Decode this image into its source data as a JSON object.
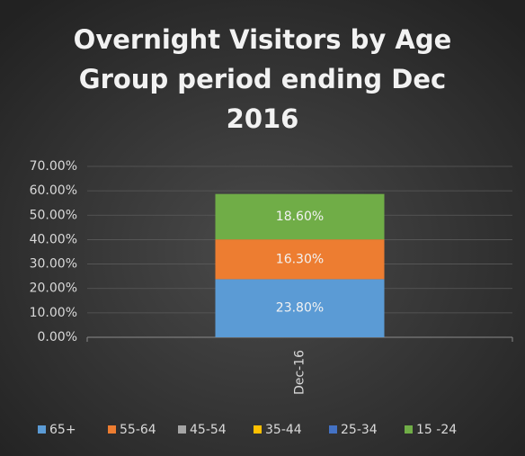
{
  "chart_data": {
    "type": "stacked_bar",
    "title": "Overnight Visitors by Age Group period ending Dec 2016",
    "categories": [
      "Dec-16"
    ],
    "series": [
      {
        "name": "65+",
        "color": "#5b9bd5",
        "values": [
          23.8
        ],
        "value_labels": [
          "23.80%"
        ]
      },
      {
        "name": "55-64",
        "color": "#ed7d31",
        "values": [
          16.3
        ],
        "value_labels": [
          "16.30%"
        ]
      },
      {
        "name": "45-54",
        "color": "#a5a5a5",
        "values": [
          0
        ]
      },
      {
        "name": "35-44",
        "color": "#ffc000",
        "values": [
          0
        ]
      },
      {
        "name": "25-34",
        "color": "#4472c4",
        "values": [
          0
        ]
      },
      {
        "name": "15 -24",
        "color": "#70ad47",
        "values": [
          18.6
        ],
        "value_labels": [
          "18.60%"
        ]
      }
    ],
    "ylim": [
      0,
      70
    ],
    "yticks": [
      {
        "value": 0,
        "label": "0.00%"
      },
      {
        "value": 10,
        "label": "10.00%"
      },
      {
        "value": 20,
        "label": "20.00%"
      },
      {
        "value": 30,
        "label": "30.00%"
      },
      {
        "value": 40,
        "label": "40.00%"
      },
      {
        "value": 50,
        "label": "50.00%"
      },
      {
        "value": 60,
        "label": "60.00%"
      },
      {
        "value": 70,
        "label": "70.00%"
      }
    ],
    "grid": true
  }
}
